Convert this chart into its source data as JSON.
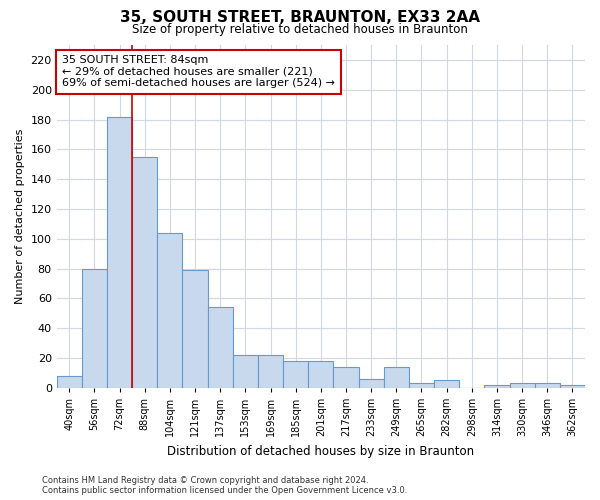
{
  "title": "35, SOUTH STREET, BRAUNTON, EX33 2AA",
  "subtitle": "Size of property relative to detached houses in Braunton",
  "xlabel": "Distribution of detached houses by size in Braunton",
  "ylabel": "Number of detached properties",
  "categories": [
    "40sqm",
    "56sqm",
    "72sqm",
    "88sqm",
    "104sqm",
    "121sqm",
    "137sqm",
    "153sqm",
    "169sqm",
    "185sqm",
    "201sqm",
    "217sqm",
    "233sqm",
    "249sqm",
    "265sqm",
    "282sqm",
    "298sqm",
    "314sqm",
    "330sqm",
    "346sqm",
    "362sqm"
  ],
  "values": [
    8,
    80,
    182,
    155,
    104,
    79,
    54,
    22,
    22,
    18,
    18,
    14,
    6,
    14,
    3,
    5,
    0,
    2,
    3,
    3,
    2
  ],
  "bar_color": "#c8d9ee",
  "bar_edge_color": "#6699cc",
  "ylim": [
    0,
    230
  ],
  "yticks": [
    0,
    20,
    40,
    60,
    80,
    100,
    120,
    140,
    160,
    180,
    200,
    220
  ],
  "red_line_x": 2.5,
  "annotation_text": "35 SOUTH STREET: 84sqm\n← 29% of detached houses are smaller (221)\n69% of semi-detached houses are larger (524) →",
  "annotation_box_color": "#ffffff",
  "annotation_box_edge": "#cc0000",
  "footer_line1": "Contains HM Land Registry data © Crown copyright and database right 2024.",
  "footer_line2": "Contains public sector information licensed under the Open Government Licence v3.0.",
  "background_color": "#ffffff",
  "plot_background": "#ffffff",
  "grid_color": "#d0d8e4"
}
